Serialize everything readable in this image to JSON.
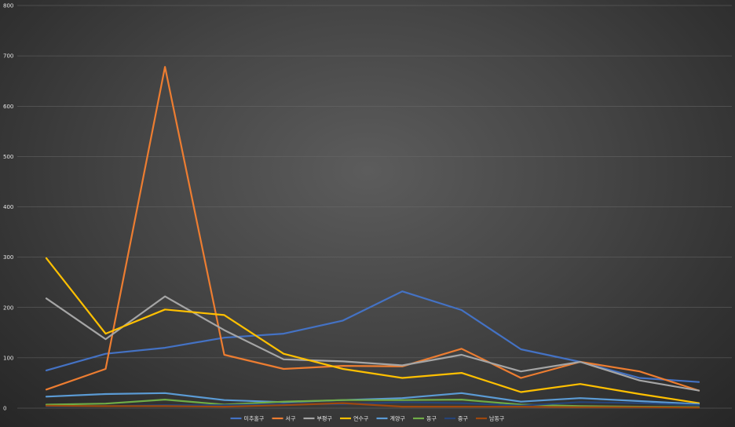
{
  "chart_data": {
    "type": "line",
    "title": "",
    "xlabel": "",
    "ylabel": "",
    "ylim": [
      0,
      800
    ],
    "yticks": [
      0,
      100,
      200,
      300,
      400,
      500,
      600,
      700,
      800
    ],
    "grid": true,
    "legend_position": "bottom",
    "x_count": 12,
    "series": [
      {
        "name": "미추홀구",
        "color": "#4472c4",
        "values": [
          75,
          108,
          120,
          140,
          148,
          174,
          232,
          195,
          117,
          92,
          60,
          52
        ]
      },
      {
        "name": "서구",
        "color": "#ed7d31",
        "values": [
          37,
          78,
          678,
          106,
          78,
          84,
          83,
          118,
          60,
          92,
          73,
          35
        ]
      },
      {
        "name": "부평구",
        "color": "#a5a5a5",
        "values": [
          218,
          137,
          222,
          155,
          97,
          93,
          85,
          106,
          73,
          92,
          55,
          35
        ]
      },
      {
        "name": "연수구",
        "color": "#ffc000",
        "values": [
          298,
          148,
          196,
          185,
          108,
          78,
          60,
          70,
          32,
          48,
          28,
          10
        ]
      },
      {
        "name": "계양구",
        "color": "#5b9bd5",
        "values": [
          23,
          28,
          30,
          16,
          12,
          16,
          20,
          30,
          13,
          20,
          14,
          8
        ]
      },
      {
        "name": "동구",
        "color": "#70ad47",
        "values": [
          7,
          9,
          17,
          7,
          13,
          16,
          16,
          17,
          7,
          4,
          3,
          2
        ]
      },
      {
        "name": "중구",
        "color": "#264478",
        "values": [
          4,
          4,
          6,
          6,
          8,
          8,
          12,
          10,
          5,
          12,
          10,
          6
        ]
      },
      {
        "name": "남동구",
        "color": "#9e480e",
        "values": [
          5,
          4,
          4,
          3,
          6,
          10,
          3,
          3,
          3,
          2,
          2,
          1
        ]
      }
    ]
  }
}
